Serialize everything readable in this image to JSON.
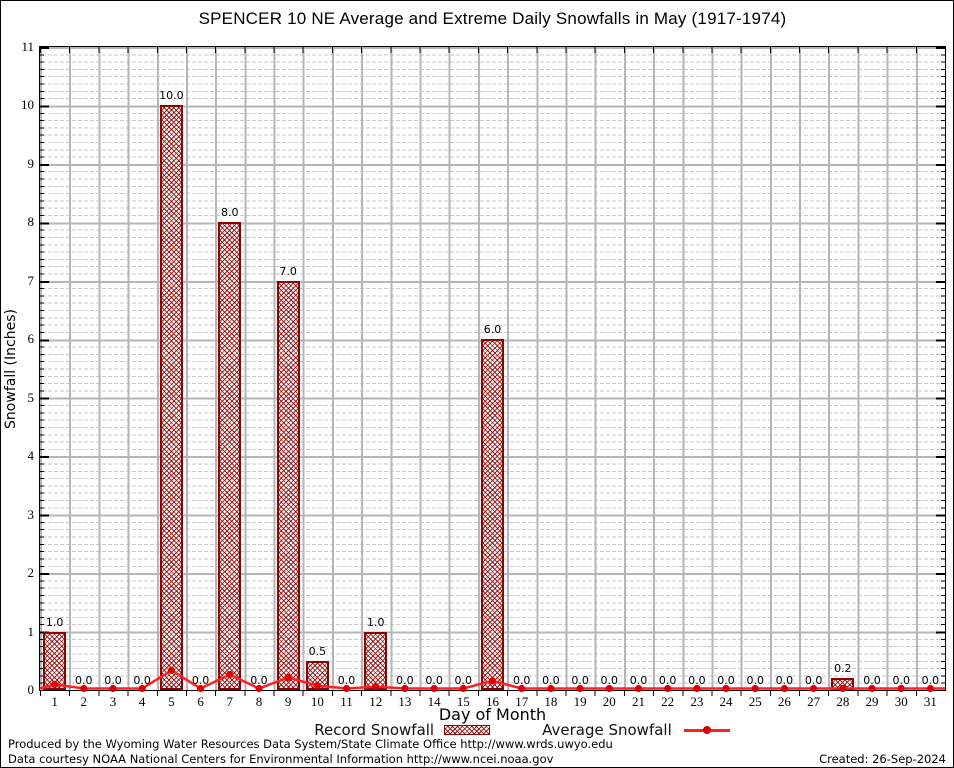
{
  "chart_data": {
    "type": "bar",
    "title": "SPENCER 10 NE Average and Extreme Daily Snowfalls in May (1917-1974)",
    "xlabel": "Day of Month",
    "ylabel": "Snowfall (Inches)",
    "ylim": [
      0,
      11
    ],
    "y_major_step": 1,
    "y_minor_step": 0.125,
    "grid": "major solid gray + minor dashed light gray",
    "legend_position": "bottom",
    "x": [
      1,
      2,
      3,
      4,
      5,
      6,
      7,
      8,
      9,
      10,
      11,
      12,
      13,
      14,
      15,
      16,
      17,
      18,
      19,
      20,
      21,
      22,
      23,
      24,
      25,
      26,
      27,
      28,
      29,
      30,
      31
    ],
    "series": [
      {
        "name": "Record Snowfall",
        "type": "bar",
        "color": "#8f0000",
        "hatch": "crosshatch",
        "values": [
          1.0,
          0.0,
          0.0,
          0.0,
          10.0,
          0.0,
          8.0,
          0.0,
          7.0,
          0.5,
          0.0,
          1.0,
          0.0,
          0.0,
          0.0,
          6.0,
          0.0,
          0.0,
          0.0,
          0.0,
          0.0,
          0.0,
          0.0,
          0.0,
          0.0,
          0.0,
          0.0,
          0.2,
          0.0,
          0.0,
          0.0
        ]
      },
      {
        "name": "Average Snowfall",
        "type": "line",
        "color": "#ff2020",
        "marker_color": "#e00000",
        "values": [
          0.07,
          0.0,
          0.0,
          0.0,
          0.31,
          0.0,
          0.24,
          0.0,
          0.19,
          0.05,
          0.0,
          0.03,
          0.0,
          0.0,
          0.0,
          0.13,
          0.0,
          0.0,
          0.0,
          0.0,
          0.0,
          0.0,
          0.0,
          0.0,
          0.0,
          0.0,
          0.0,
          0.0,
          0.0,
          0.0,
          0.0
        ]
      }
    ]
  },
  "legend": {
    "record_label": "Record Snowfall",
    "average_label": "Average Snowfall"
  },
  "footer": {
    "line1": "Produced by the Wyoming Water Resources Data System/State Climate Office http://www.wrds.uwyo.edu",
    "line2": "Data courtesy NOAA National Centers for Environmental Information http://www.ncei.noaa.gov",
    "created": "Created: 26-Sep-2024"
  },
  "colors": {
    "bar_border": "#8f0000",
    "line": "#ff2020",
    "marker": "#e00000",
    "grid_major": "#b6b6b6",
    "grid_minor": "#c9c9c9"
  }
}
